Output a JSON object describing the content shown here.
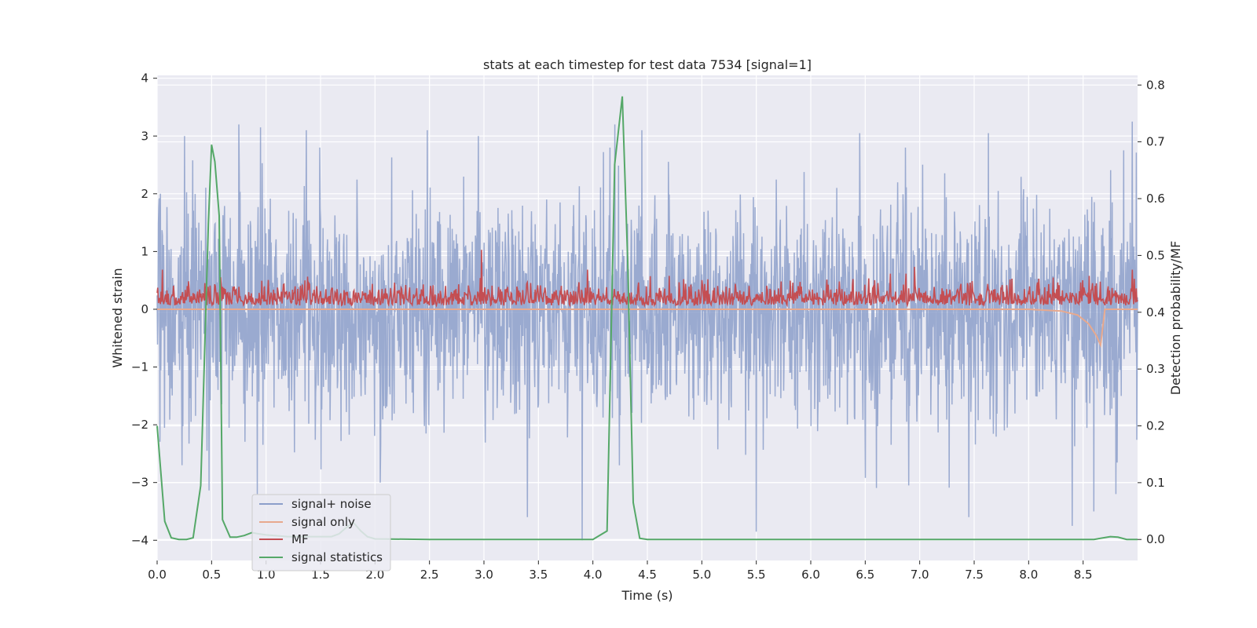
{
  "chart_data": {
    "type": "line",
    "title": "stats at each timestep for test data 7534 [signal=1]",
    "xlabel": "Time (s)",
    "ylabel": "Whitened strain",
    "ylabel_right": "Detection probability/MF",
    "xlim": [
      0.0,
      9.0
    ],
    "ylim": [
      -4.35,
      4.05
    ],
    "ylim_right": [
      -0.037,
      0.817
    ],
    "x_ticks": [
      "0.0",
      "0.5",
      "1.0",
      "1.5",
      "2.0",
      "2.5",
      "3.0",
      "3.5",
      "4.0",
      "4.5",
      "5.0",
      "5.5",
      "6.0",
      "6.5",
      "7.0",
      "7.5",
      "8.0",
      "8.5"
    ],
    "y_ticks": [
      "−4",
      "−3",
      "−2",
      "−1",
      "0",
      "1",
      "2",
      "3",
      "4"
    ],
    "y_ticks_right": [
      "0.0",
      "0.1",
      "0.2",
      "0.3",
      "0.4",
      "0.5",
      "0.6",
      "0.7",
      "0.8"
    ],
    "grid": true,
    "legend_position": "lower-left",
    "series": [
      {
        "name": "signal+ noise",
        "axis": "left",
        "color": "#8c9fca",
        "description": "dense whitened noise, roughly in [-3.9, 3.7]",
        "envelope_peaks": [
          [
            0.03,
            2.0
          ],
          [
            0.25,
            3.0
          ],
          [
            0.75,
            3.2
          ],
          [
            0.95,
            3.15
          ],
          [
            1.37,
            3.1
          ],
          [
            2.48,
            3.1
          ],
          [
            2.95,
            3.0
          ],
          [
            4.2,
            3.2
          ],
          [
            4.45,
            3.1
          ],
          [
            6.45,
            3.05
          ],
          [
            7.63,
            3.05
          ],
          [
            8.4,
            3.3
          ],
          [
            8.95,
            3.25
          ]
        ],
        "envelope_troughs": [
          [
            0.23,
            -2.7
          ],
          [
            0.92,
            -3.2
          ],
          [
            2.05,
            -3.0
          ],
          [
            3.4,
            -3.6
          ],
          [
            3.9,
            -4.0
          ],
          [
            5.5,
            -3.85
          ],
          [
            6.9,
            -3.05
          ],
          [
            7.45,
            -3.6
          ],
          [
            8.4,
            -3.75
          ],
          [
            8.6,
            -3.5
          ],
          [
            8.8,
            -3.2
          ]
        ]
      },
      {
        "name": "signal only",
        "axis": "left",
        "color": "#e8a98e",
        "x": [
          0.0,
          8.0,
          8.3,
          8.45,
          8.55,
          8.62,
          8.66,
          8.7,
          9.0
        ],
        "y": [
          0.0,
          0.0,
          -0.03,
          -0.1,
          -0.25,
          -0.45,
          -0.62,
          0.0,
          0.0
        ]
      },
      {
        "name": "MF",
        "axis": "right",
        "color": "#c44e52",
        "description": "noisy matched-filter output, mostly between 0.40 and 0.47",
        "baseline": 0.42,
        "spikes": [
          [
            0.05,
            0.475
          ],
          [
            2.98,
            0.51
          ],
          [
            3.95,
            0.475
          ],
          [
            6.95,
            0.48
          ],
          [
            8.95,
            0.475
          ]
        ]
      },
      {
        "name": "signal statistics",
        "axis": "right",
        "color": "#55a868",
        "x": [
          0.0,
          0.07,
          0.13,
          0.2,
          0.27,
          0.33,
          0.4,
          0.47,
          0.5,
          0.53,
          0.57,
          0.6,
          0.67,
          0.73,
          0.8,
          0.87,
          0.93,
          1.0,
          1.2,
          1.4,
          1.6,
          1.67,
          1.73,
          1.8,
          1.87,
          1.93,
          2.0,
          2.5,
          3.0,
          3.5,
          4.0,
          4.13,
          4.2,
          4.27,
          4.32,
          4.37,
          4.43,
          4.5,
          5.0,
          6.0,
          7.0,
          8.0,
          8.6,
          8.75,
          8.82,
          8.9,
          9.0
        ],
        "y": [
          0.2,
          0.032,
          0.003,
          0.0,
          0.0,
          0.003,
          0.095,
          0.555,
          0.695,
          0.665,
          0.57,
          0.035,
          0.004,
          0.004,
          0.007,
          0.012,
          0.01,
          0.008,
          0.005,
          0.005,
          0.005,
          0.01,
          0.02,
          0.03,
          0.015,
          0.005,
          0.001,
          0.0,
          0.0,
          0.0,
          0.0,
          0.015,
          0.66,
          0.78,
          0.49,
          0.065,
          0.002,
          0.0,
          0.0,
          0.0,
          0.0,
          0.0,
          0.0,
          0.005,
          0.004,
          0.0,
          0.0
        ]
      }
    ]
  }
}
